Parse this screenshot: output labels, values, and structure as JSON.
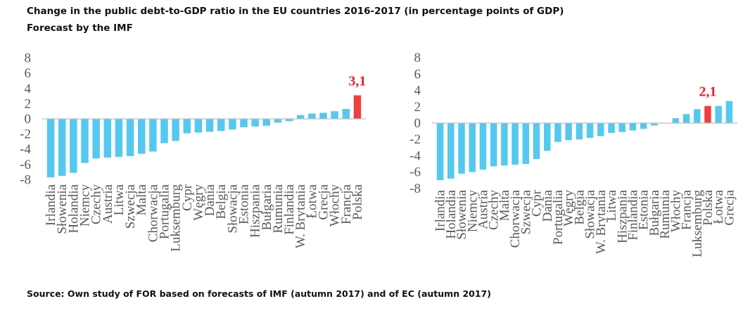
{
  "title_line1": "Change in the public debt-to-GDP ratio in the EU countries 2016-2017 (in percentage points of GDP)",
  "title_line2": "Forecast by the IMF",
  "source": "Source: Own study of FOR based on forecasts of IMF (autumn 2017) and of EC (autumn 2017)",
  "colors": {
    "bar": "#55c8f0",
    "highlight": "#ef4040",
    "axis": "#bfbfbf",
    "label_highlight": "#e8202a"
  },
  "chart_data": [
    {
      "type": "bar",
      "ylim": [
        -8,
        8
      ],
      "yticks": [
        8,
        6,
        4,
        2,
        0,
        -2,
        -4,
        -6,
        -8
      ],
      "highlight": "Polska",
      "highlight_label": "3,1",
      "categories": [
        "Irlandia",
        "Słowenia",
        "Holandia",
        "Niemcy",
        "Czechy",
        "Austria",
        "Litwa",
        "Szwecja",
        "Malta",
        "Chorwacja",
        "Portugalia",
        "Luksemburg",
        "Cypr",
        "Węgry",
        "Dania",
        "Belgia",
        "Słowacja",
        "Estonia",
        "Hiszpania",
        "Bułgaria",
        "Rumunia",
        "Finlandia",
        "W. Brytania",
        "Łotwa",
        "Grecja",
        "Włochy",
        "Francja",
        "Polska"
      ],
      "values": [
        -7.7,
        -7.5,
        -7.1,
        -5.8,
        -5.2,
        -5.1,
        -5.0,
        -4.9,
        -4.6,
        -4.3,
        -3.2,
        -2.9,
        -1.9,
        -1.8,
        -1.7,
        -1.6,
        -1.4,
        -1.1,
        -1.0,
        -0.9,
        -0.5,
        -0.3,
        0.5,
        0.7,
        0.8,
        1.0,
        1.3,
        3.1
      ]
    },
    {
      "type": "bar",
      "ylim": [
        -8,
        8
      ],
      "yticks": [
        8,
        6,
        4,
        2,
        0,
        -2,
        -4,
        -6,
        -8
      ],
      "highlight": "Polska",
      "highlight_label": "2,1",
      "categories": [
        "Irlandia",
        "Holandia",
        "Słowenia",
        "Niemcy",
        "Austria",
        "Czechy",
        "Malta",
        "Chorwacja",
        "Szwecja",
        "Cypr",
        "Dania",
        "Portugalia",
        "Węgry",
        "Belgia",
        "Słowacja",
        "W. Brytania",
        "Litwa",
        "Hiszpania",
        "Finlandia",
        "Estonia",
        "Bułgaria",
        "Rumunia",
        "Włochy",
        "Francja",
        "Luksemburg",
        "Polska",
        "Łotwa",
        "Grecja"
      ],
      "values": [
        -7.0,
        -6.8,
        -6.2,
        -6.0,
        -5.7,
        -5.3,
        -5.2,
        -5.1,
        -5.0,
        -4.4,
        -3.4,
        -2.3,
        -2.1,
        -2.0,
        -1.8,
        -1.6,
        -1.2,
        -1.1,
        -0.9,
        -0.7,
        -0.3,
        0.0,
        0.6,
        1.1,
        1.7,
        2.1,
        2.1,
        2.7
      ]
    }
  ]
}
